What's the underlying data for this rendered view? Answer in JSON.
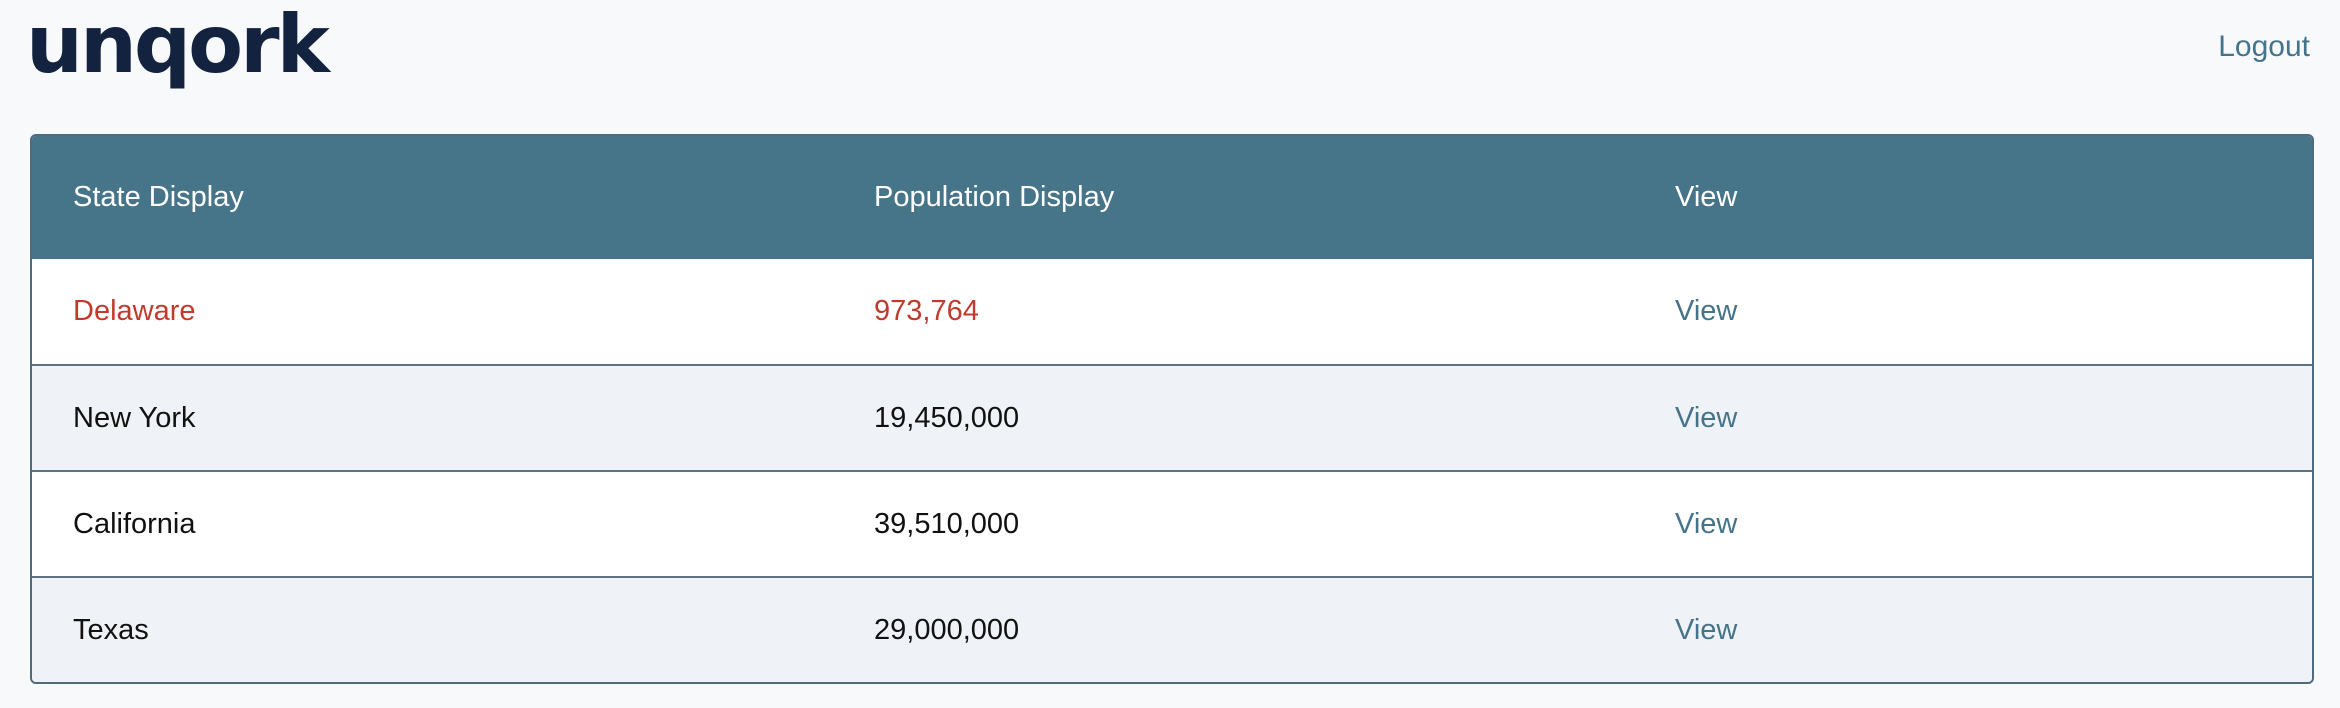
{
  "header": {
    "logo_text": "unqork",
    "logout_label": "Logout"
  },
  "table": {
    "columns": [
      "State Display",
      "Population Display",
      "View"
    ],
    "rows": [
      {
        "state": "Delaware",
        "population": "973,764",
        "view_label": "View"
      },
      {
        "state": "New York",
        "population": "19,450,000",
        "view_label": "View"
      },
      {
        "state": "California",
        "population": "39,510,000",
        "view_label": "View"
      },
      {
        "state": "Texas",
        "population": "29,000,000",
        "view_label": "View"
      }
    ]
  },
  "colors": {
    "header_bg": "#467489",
    "highlight_text": "#c13b2c",
    "link": "#45748a",
    "logo": "#13223f"
  }
}
